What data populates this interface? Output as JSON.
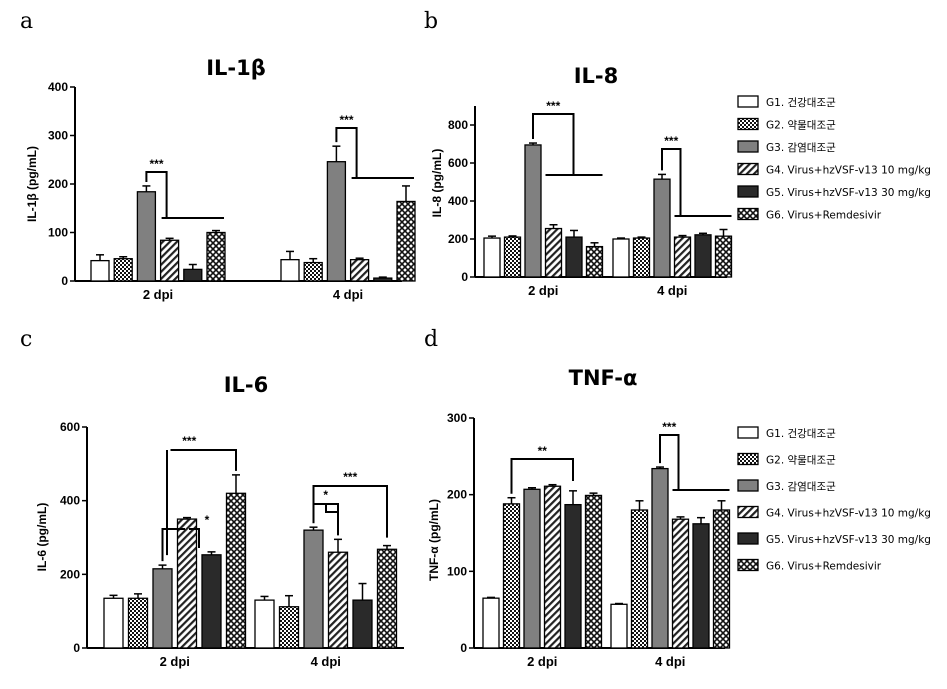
{
  "figure": {
    "legend_entries": [
      "G1. 건강대조군",
      "G2. 약물대조군",
      "G3. 감염대조군",
      "G4. Virus+hzVSF-v13 10 mg/kg",
      "G5. Virus+hzVSF-v13 30 mg/kg",
      "G6. Virus+Remdesivir"
    ],
    "group_styles": [
      "white",
      "checker",
      "gray",
      "hatch",
      "black",
      "crosshatch"
    ]
  },
  "chart_data": [
    {
      "type": "bar",
      "panel": "a",
      "title": "IL-1β",
      "ylabel": "IL-1β (pg/mL)",
      "categories": [
        "2 dpi",
        "4 dpi"
      ],
      "ylim": [
        0,
        400
      ],
      "yticks": [
        0,
        100,
        200,
        300,
        400
      ],
      "series": [
        {
          "name": "G1. 건강대조군",
          "values": [
            42,
            44
          ],
          "errors": [
            12,
            17
          ]
        },
        {
          "name": "G2. 약물대조군",
          "values": [
            46,
            38
          ],
          "errors": [
            4,
            8
          ]
        },
        {
          "name": "G3. 감염대조군",
          "values": [
            184,
            246
          ],
          "errors": [
            12,
            32
          ]
        },
        {
          "name": "G4. Virus+hzVSF-v13 10 mg/kg",
          "values": [
            84,
            44
          ],
          "errors": [
            4,
            3
          ]
        },
        {
          "name": "G5. Virus+hzVSF-v13 30 mg/kg",
          "values": [
            24,
            6
          ],
          "errors": [
            10,
            2
          ]
        },
        {
          "name": "G6. Virus+Remdesivir",
          "values": [
            100,
            164
          ],
          "errors": [
            4,
            32
          ]
        }
      ],
      "significance": [
        "***",
        "***"
      ]
    },
    {
      "type": "bar",
      "panel": "b",
      "title": "IL-8",
      "ylabel": "IL-8 (pg/mL)",
      "categories": [
        "2 dpi",
        "4 dpi"
      ],
      "ylim": [
        0,
        900
      ],
      "yticks": [
        0,
        200,
        400,
        600,
        800
      ],
      "series": [
        {
          "name": "G1. 건강대조군",
          "values": [
            205,
            200
          ],
          "errors": [
            10,
            5
          ]
        },
        {
          "name": "G2. 약물대조군",
          "values": [
            210,
            205
          ],
          "errors": [
            6,
            5
          ]
        },
        {
          "name": "G3. 감염대조군",
          "values": [
            695,
            515
          ],
          "errors": [
            10,
            25
          ]
        },
        {
          "name": "G4. Virus+hzVSF-v13 10 mg/kg",
          "values": [
            255,
            210
          ],
          "errors": [
            20,
            8
          ]
        },
        {
          "name": "G5. Virus+hzVSF-v13 30 mg/kg",
          "values": [
            210,
            222
          ],
          "errors": [
            35,
            8
          ]
        },
        {
          "name": "G6. Virus+Remdesivir",
          "values": [
            160,
            215
          ],
          "errors": [
            20,
            35
          ]
        }
      ],
      "significance": [
        "***",
        "***"
      ]
    },
    {
      "type": "bar",
      "panel": "c",
      "title": "IL-6",
      "ylabel": "IL-6 (pg/mL)",
      "categories": [
        "2 dpi",
        "4 dpi"
      ],
      "ylim": [
        0,
        600
      ],
      "yticks": [
        0,
        200,
        400,
        600
      ],
      "series": [
        {
          "name": "G1. 건강대조군",
          "values": [
            135,
            130
          ],
          "errors": [
            8,
            10
          ]
        },
        {
          "name": "G2. 약물대조군",
          "values": [
            135,
            112
          ],
          "errors": [
            12,
            30
          ]
        },
        {
          "name": "G3. 감염대조군",
          "values": [
            215,
            320
          ],
          "errors": [
            10,
            8
          ]
        },
        {
          "name": "G4. Virus+hzVSF-v13 10 mg/kg",
          "values": [
            350,
            260
          ],
          "errors": [
            4,
            35
          ]
        },
        {
          "name": "G5. Virus+hzVSF-v13 30 mg/kg",
          "values": [
            253,
            130
          ],
          "errors": [
            8,
            45
          ]
        },
        {
          "name": "G6. Virus+Remdesivir",
          "values": [
            420,
            268
          ],
          "errors": [
            50,
            10
          ]
        }
      ],
      "significance": [
        "***",
        "*",
        "***",
        "*"
      ]
    },
    {
      "type": "bar",
      "panel": "d",
      "title": "TNF-α",
      "ylabel": "TNF-α (pg/mL)",
      "categories": [
        "2 dpi",
        "4 dpi"
      ],
      "ylim": [
        0,
        300
      ],
      "yticks": [
        0,
        100,
        200,
        300
      ],
      "series": [
        {
          "name": "G1. 건강대조군",
          "values": [
            65,
            57
          ],
          "errors": [
            1,
            1
          ]
        },
        {
          "name": "G2. 약물대조군",
          "values": [
            188,
            180
          ],
          "errors": [
            8,
            12
          ]
        },
        {
          "name": "G3. 감염대조군",
          "values": [
            207,
            234
          ],
          "errors": [
            2,
            2
          ]
        },
        {
          "name": "G4. Virus+hzVSF-v13 10 mg/kg",
          "values": [
            211,
            168
          ],
          "errors": [
            2,
            3
          ]
        },
        {
          "name": "G5. Virus+hzVSF-v13 30 mg/kg",
          "values": [
            187,
            162
          ],
          "errors": [
            18,
            8
          ]
        },
        {
          "name": "G6. Virus+Remdesivir",
          "values": [
            199,
            180
          ],
          "errors": [
            3,
            12
          ]
        }
      ],
      "significance": [
        "**",
        "***"
      ]
    }
  ]
}
